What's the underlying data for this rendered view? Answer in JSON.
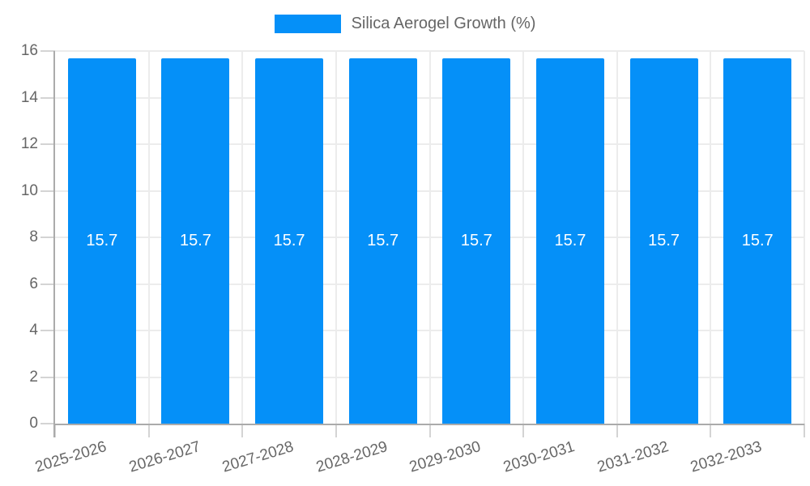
{
  "chart_data": {
    "type": "bar",
    "title": "",
    "legend_label": "Silica Aerogel Growth (%)",
    "legend_position": "top",
    "categories": [
      "2025-2026",
      "2026-2027",
      "2027-2028",
      "2028-2029",
      "2029-2030",
      "2030-2031",
      "2031-2032",
      "2032-2033"
    ],
    "series": [
      {
        "name": "Silica Aerogel Growth (%)",
        "values": [
          15.7,
          15.7,
          15.7,
          15.7,
          15.7,
          15.7,
          15.7,
          15.7
        ]
      }
    ],
    "data_labels": [
      "15.7",
      "15.7",
      "15.7",
      "15.7",
      "15.7",
      "15.7",
      "15.7",
      "15.7"
    ],
    "xlabel": "",
    "ylabel": "",
    "ylim": [
      0,
      16
    ],
    "yticks": [
      0,
      2,
      4,
      6,
      8,
      10,
      12,
      14,
      16
    ],
    "grid": true,
    "legend": "top-center",
    "x_label_rotation_deg": -17,
    "colors": {
      "bar": "#0590f8",
      "data_label": "#ffffff",
      "axis_text": "#666666",
      "grid": "#ececec",
      "axis_line": "#ababab",
      "tick": "#d4d4d4",
      "background": "#ffffff"
    }
  }
}
